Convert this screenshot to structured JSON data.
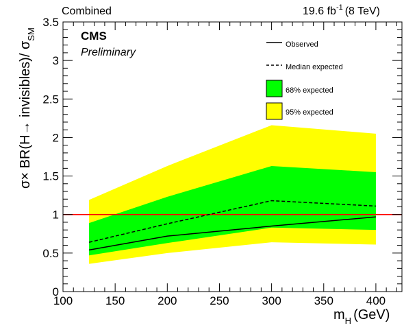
{
  "chart_data": {
    "type": "area",
    "header_left": "Combined",
    "lumi_text": "19.6 fb",
    "lumi_sup": "-1",
    "energy_text": "(8 TeV)",
    "cms_label": "CMS",
    "prelim_label": "Preliminary",
    "xlabel": "m",
    "xlabel_sub": "H",
    "xlabel_unit": "(GeV)",
    "ylabel": "σ× BR(H→ invisibles)/ σ",
    "ylabel_sub": "SM",
    "xlim": [
      100,
      425
    ],
    "ylim": [
      0,
      3.5
    ],
    "xticks": [
      100,
      150,
      200,
      250,
      300,
      350,
      400
    ],
    "yticks": [
      0,
      0.5,
      1,
      1.5,
      2,
      2.5,
      3,
      3.5
    ],
    "ytick_labels": [
      "0",
      "0.5",
      "1",
      "1.5",
      "2",
      "2.5",
      "3",
      "3.5"
    ],
    "x": [
      125,
      200,
      300,
      400
    ],
    "series": [
      {
        "name": "Observed",
        "style": "solid",
        "values": [
          0.54,
          0.72,
          0.85,
          0.97
        ]
      },
      {
        "name": "Median expected",
        "style": "dashed",
        "values": [
          0.64,
          0.88,
          1.18,
          1.11
        ]
      }
    ],
    "band_68": {
      "name": "68% expected",
      "color": "#00ff00",
      "lower": [
        0.47,
        0.63,
        0.83,
        0.8
      ],
      "upper": [
        0.89,
        1.23,
        1.63,
        1.55
      ]
    },
    "band_95": {
      "name": "95% expected",
      "color": "#ffff00",
      "lower": [
        0.36,
        0.5,
        0.64,
        0.61
      ],
      "upper": [
        1.19,
        1.63,
        2.16,
        2.05
      ]
    },
    "reference_line": {
      "y": 1,
      "color": "#ff0000"
    },
    "grid": false,
    "legend_position": "top-right"
  }
}
